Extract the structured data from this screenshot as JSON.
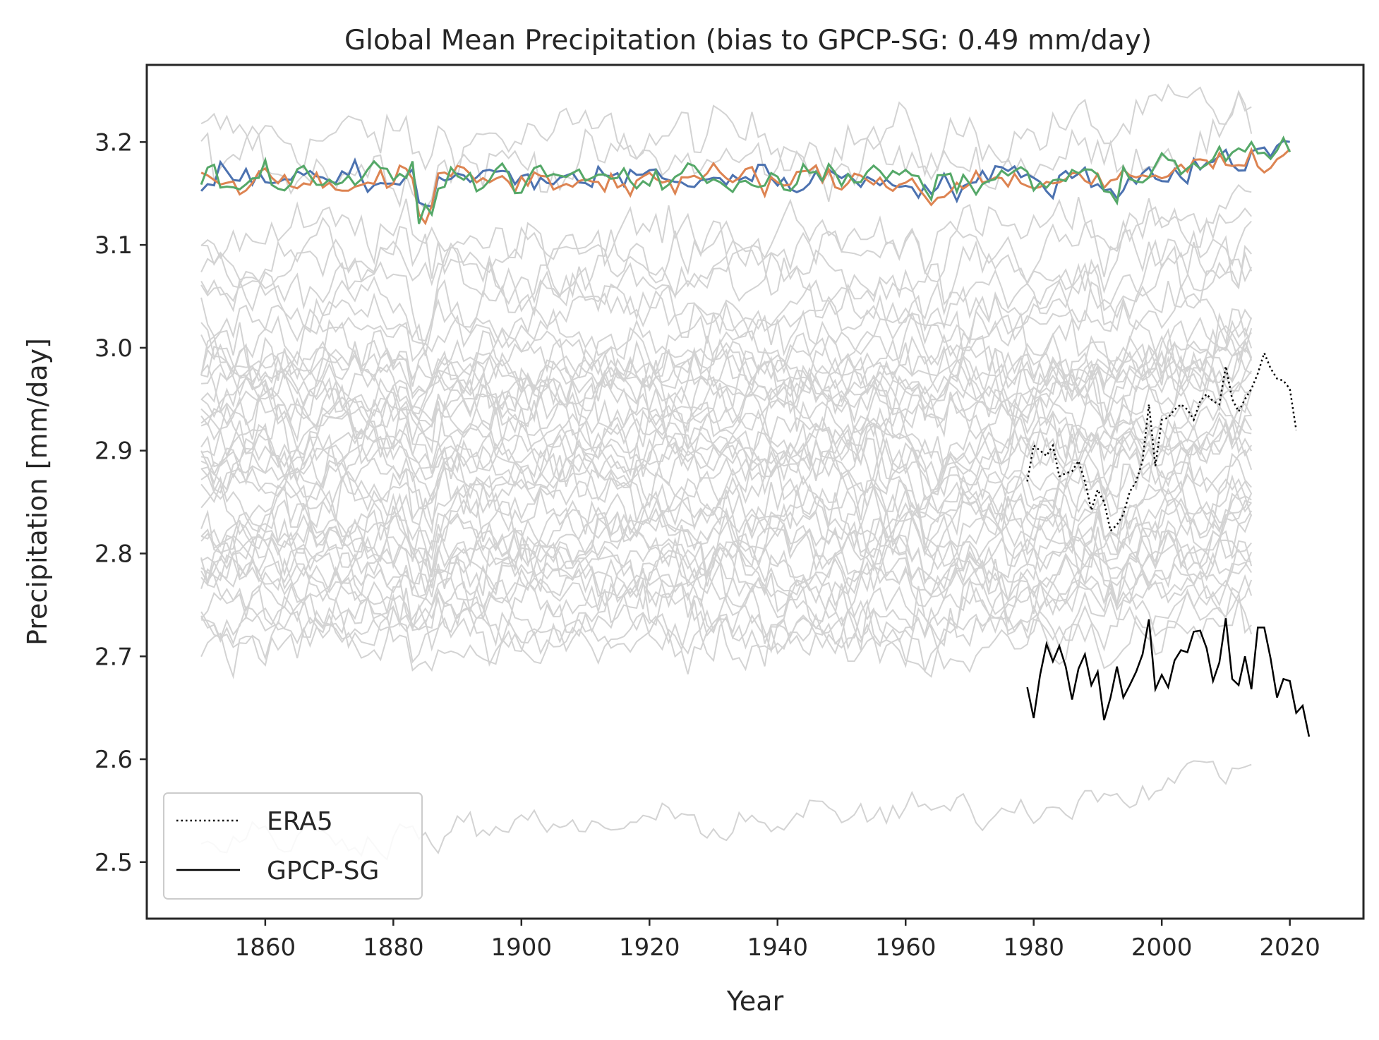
{
  "chart_data": {
    "type": "line",
    "title": "Global Mean Precipitation (bias to GPCP-SG: 0.49 mm/day)",
    "xlabel": "Year",
    "ylabel": "Precipitation [mm/day]",
    "xlim": [
      1841.5,
      2031.5
    ],
    "ylim": [
      2.445,
      3.275
    ],
    "xticks": [
      1860,
      1880,
      1900,
      1920,
      1940,
      1960,
      1980,
      2000,
      2020
    ],
    "yticks": [
      2.5,
      2.6,
      2.7,
      2.8,
      2.9,
      3.0,
      3.1,
      3.2
    ],
    "grid": false,
    "legend": {
      "placement": "lower-left",
      "entries": [
        "ERA5",
        "GPCP-SG"
      ]
    },
    "colors": {
      "ensemble": "#d3d3d3",
      "blue": "#4c72b0",
      "orange": "#dd8452",
      "green": "#55a868",
      "observations": "#000000",
      "axes": "#262626"
    },
    "ensemble": {
      "description_years": [
        1850,
        2014
      ],
      "member_baselines": [
        3.205,
        3.18,
        3.11,
        3.09,
        3.075,
        3.06,
        3.045,
        3.03,
        3.015,
        3.0,
        2.99,
        2.98,
        2.975,
        2.97,
        2.965,
        2.96,
        2.955,
        2.95,
        2.94,
        2.93,
        2.92,
        2.91,
        2.905,
        2.9,
        2.895,
        2.89,
        2.88,
        2.87,
        2.86,
        2.85,
        2.84,
        2.83,
        2.825,
        2.82,
        2.81,
        2.8,
        2.795,
        2.79,
        2.785,
        2.78,
        2.77,
        2.76,
        2.75,
        2.74,
        2.73,
        2.72,
        2.715
      ]
    },
    "series": [
      {
        "name": "ERA5",
        "style": "dotted",
        "color": "#000000",
        "x": [
          1979,
          1980,
          1981,
          1982,
          1983,
          1984,
          1985,
          1986,
          1987,
          1988,
          1989,
          1990,
          1991,
          1992,
          1993,
          1994,
          1995,
          1996,
          1997,
          1998,
          1999,
          2000,
          2001,
          2002,
          2003,
          2004,
          2005,
          2006,
          2007,
          2008,
          2009,
          2010,
          2011,
          2012,
          2013,
          2014,
          2015,
          2016,
          2017,
          2018,
          2019,
          2020,
          2021
        ],
        "y": [
          2.87,
          2.905,
          2.9,
          2.895,
          2.905,
          2.875,
          2.878,
          2.88,
          2.89,
          2.87,
          2.842,
          2.862,
          2.85,
          2.822,
          2.828,
          2.838,
          2.86,
          2.87,
          2.89,
          2.945,
          2.885,
          2.93,
          2.932,
          2.94,
          2.945,
          2.94,
          2.93,
          2.948,
          2.955,
          2.948,
          2.945,
          2.982,
          2.95,
          2.938,
          2.95,
          2.96,
          2.975,
          2.995,
          2.98,
          2.97,
          2.968,
          2.96,
          2.92
        ]
      },
      {
        "name": "GPCP-SG",
        "style": "solid",
        "color": "#000000",
        "x": [
          1979,
          1980,
          1981,
          1982,
          1983,
          1984,
          1985,
          1986,
          1987,
          1988,
          1989,
          1990,
          1991,
          1992,
          1993,
          1994,
          1995,
          1996,
          1997,
          1998,
          1999,
          2000,
          2001,
          2002,
          2003,
          2004,
          2005,
          2006,
          2007,
          2008,
          2009,
          2010,
          2011,
          2012,
          2013,
          2014,
          2015,
          2016,
          2017,
          2018,
          2019,
          2020,
          2021,
          2022,
          2023
        ],
        "y": [
          2.67,
          2.64,
          2.682,
          2.712,
          2.695,
          2.71,
          2.69,
          2.658,
          2.688,
          2.702,
          2.672,
          2.685,
          2.638,
          2.66,
          2.69,
          2.66,
          2.672,
          2.685,
          2.702,
          2.736,
          2.668,
          2.682,
          2.67,
          2.696,
          2.706,
          2.704,
          2.724,
          2.725,
          2.708,
          2.676,
          2.694,
          2.737,
          2.678,
          2.672,
          2.7,
          2.668,
          2.728,
          2.728,
          2.698,
          2.66,
          2.678,
          2.676,
          2.645,
          2.652,
          2.622
        ]
      }
    ],
    "highlighted_members": [
      {
        "color": "#4c72b0",
        "x_range": [
          1850,
          2020
        ],
        "mean": 3.165
      },
      {
        "color": "#dd8452",
        "x_range": [
          1850,
          2020
        ],
        "mean": 3.163
      },
      {
        "color": "#55a868",
        "x_range": [
          1850,
          2020
        ],
        "mean": 3.165
      }
    ]
  }
}
